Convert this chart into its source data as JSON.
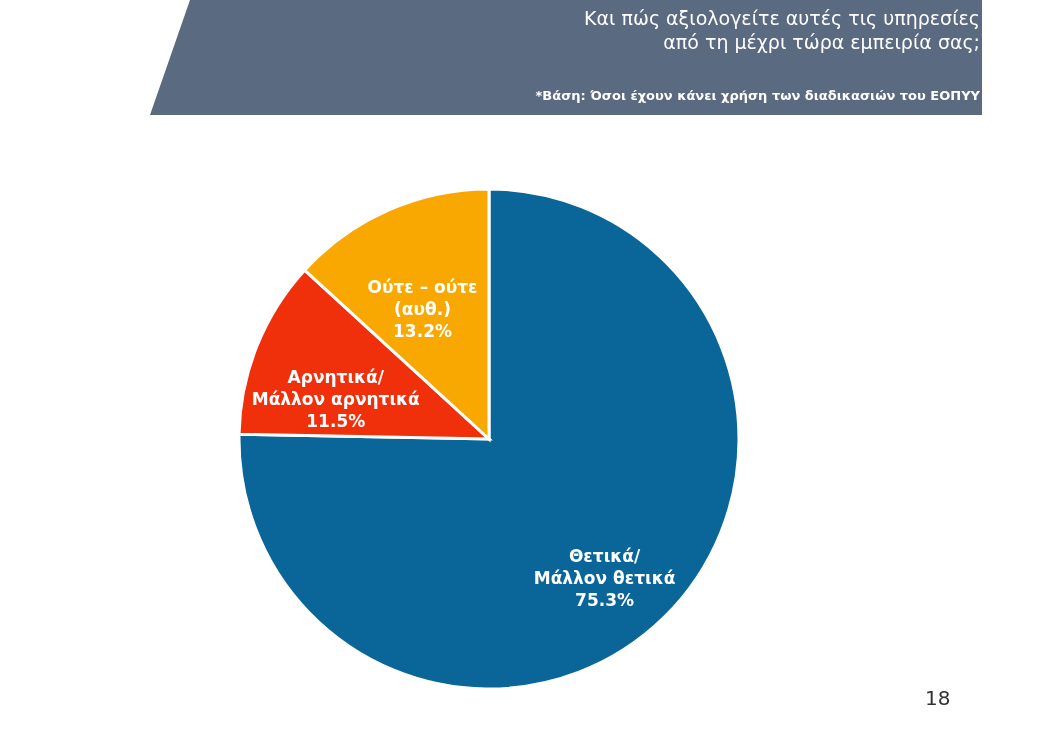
{
  "chart_data": {
    "type": "pie",
    "title": "Και πώς αξιολογείτε αυτές τις υπηρεσίες\nαπό τη μέχρι τώρα εμπειρία σας;",
    "subtitle": "*Βάση: Όσοι έχουν κάνει χρήση των διαδικασιών του ΕΟΠΥΥ",
    "categories": [
      "Θετικά/\nΜάλλον θετικά",
      "Αρνητικά/\nΜάλλον αρνητικά",
      "Ούτε – ούτε\n(αυθ.)"
    ],
    "values": [
      75.3,
      11.5,
      13.2
    ],
    "value_labels": [
      "75.3%",
      "11.5%",
      "13.2%"
    ],
    "colors": [
      "#0a6699",
      "#f0300a",
      "#f8a800"
    ],
    "annotations": [
      "18"
    ]
  }
}
